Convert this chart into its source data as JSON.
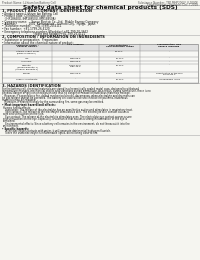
{
  "title": "Safety data sheet for chemical products (SDS)",
  "header_left": "Product Name: Lithium Ion Battery Cell",
  "header_right_line1": "Substance Number: TFP-MHP200LF-V-1K00F",
  "header_right_line2": "Establishment / Revision: Dec.7.2018",
  "bg_color": "#f5f5f0",
  "section1_title": "1. PRODUCT AND COMPANY IDENTIFICATION",
  "section1_lines": [
    "• Product name: Lithium Ion Battery Cell",
    "• Product code: Cylindrical-type cell",
    "   (IHR18650U, IHR18650U, IHR18650A)",
    "• Company name:     Sanyo Electric Co., Ltd.  Mobile Energy Company",
    "• Address:              2001  Kamimakura,  Sumoto-City,  Hyogo,  Japan",
    "• Telephone number:    +81-(799)-20-4111",
    "• Fax number:  +81-1799-26-4120",
    "• Emergency telephone number (Weekday) +81-799-20-3662",
    "                                    (Night and holiday) +81-799-26-4121"
  ],
  "section2_title": "2. COMPOSITION / INFORMATION ON INGREDIENTS",
  "section2_sub1": "• Substance or preparation:  Preparation",
  "section2_sub2": "• Information about the chemical nature of product:",
  "table_col_headers": [
    "Chemical name /\nSeveral names",
    "CAS number",
    "Concentration /\nConcentration range",
    "Classification and\nhazard labeling"
  ],
  "table_rows": [
    [
      "Lithium cobalt oxide\n(LiMnxCoxNiO2x)",
      "-",
      "30-60%",
      "-"
    ],
    [
      "Iron",
      "7439-89-6",
      "10-20%",
      "-"
    ],
    [
      "Aluminum",
      "7429-90-5",
      "2-5%",
      "-"
    ],
    [
      "Graphite\n(Mixed graphite-1)\n(Artificial graphite-1)",
      "77782-42-5\n7782-40-3",
      "10-20%",
      "-"
    ],
    [
      "Copper",
      "7440-50-8",
      "5-15%",
      "Sensitization of the skin\ngroup No.2"
    ],
    [
      "Organic electrolyte",
      "-",
      "10-20%",
      "Inflammable liquid"
    ]
  ],
  "section3_title": "3. HAZARDS IDENTIFICATION",
  "section3_para1": "For the battery cell, chemical materials are stored in a hermetically sealed metal case, designed to withstand temperature changes, mechanical shocks and vibrations during normal use. As a result, during normal use, there is no physical danger of ignition or explosion and thus no danger of release of hazardous materials leakage.",
  "section3_para2": "   However, if exposed to a fire, added mechanical shocks, decompose, when electrolyte and dry mass can be gas release cannot be operated. The battery cell case will be scorched at fire patterns, hazardous materials may be released.",
  "section3_para3": "   Moreover, if heated strongly by the surrounding fire, some gas may be emitted.",
  "section3_bullet1": "• Most important hazard and effects:",
  "section3_health": "Human health effects:",
  "section3_inhale": "   Inhalation: The release of the electrolyte has an anesthetics action and stimulates in respiratory tract.",
  "section3_skin1": "   Skin contact: The release of the electrolyte stimulates a skin. The electrolyte skin contact causes a",
  "section3_skin2": "sore and stimulation on the skin.",
  "section3_eye1": "   Eye contact: The release of the electrolyte stimulates eyes. The electrolyte eye contact causes a sore",
  "section3_eye2": "and stimulation on the eye. Especially, a substance that causes a strong inflammation of the eye is",
  "section3_eye3": "contained.",
  "section3_env1": "   Environmental effects: Since a battery cell remains in the environment, do not throw out it into the",
  "section3_env2": "environment.",
  "section3_bullet2": "• Specific hazards:",
  "section3_sp1": "   If the electrolyte contacts with water, it will generate detrimental hydrogen fluoride.",
  "section3_sp2": "   Since the used electrolyte is inflammable liquid, do not bring close to fire.",
  "line_color": "#aaaaaa",
  "text_color": "#111111",
  "header_text_color": "#555555",
  "table_header_bg": "#e0e0e0",
  "table_row_bg": "#f8f8f5",
  "table_border": "#888888"
}
